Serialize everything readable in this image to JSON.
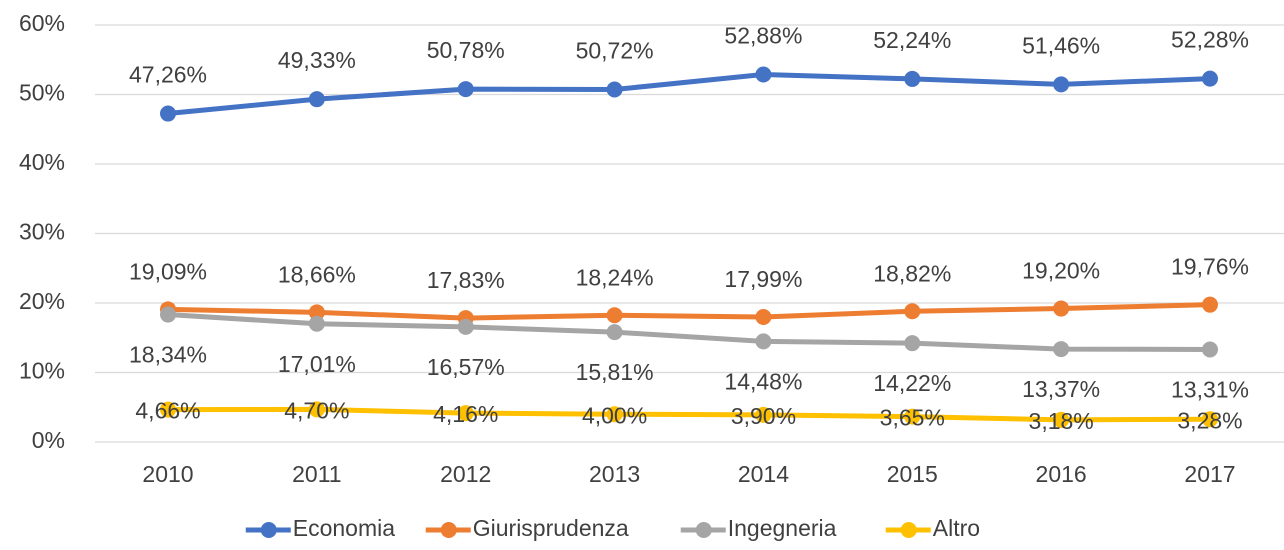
{
  "chart_data": {
    "type": "line",
    "categories": [
      "2010",
      "2011",
      "2012",
      "2013",
      "2014",
      "2015",
      "2016",
      "2017"
    ],
    "series": [
      {
        "name": "Economia",
        "color": "#4472c4",
        "values": [
          47.26,
          49.33,
          50.78,
          50.72,
          52.88,
          52.24,
          51.46,
          52.28
        ],
        "value_labels": [
          "47,26%",
          "49,33%",
          "50,78%",
          "50,72%",
          "52,88%",
          "52,24%",
          "51,46%",
          "52,28%"
        ]
      },
      {
        "name": "Giurisprudenza",
        "color": "#ed7d31",
        "values": [
          19.09,
          18.66,
          17.83,
          18.24,
          17.99,
          18.82,
          19.2,
          19.76
        ],
        "value_labels": [
          "19,09%",
          "18,66%",
          "17,83%",
          "18,24%",
          "17,99%",
          "18,82%",
          "19,20%",
          "19,76%"
        ]
      },
      {
        "name": "Ingegneria",
        "color": "#a5a5a5",
        "values": [
          18.34,
          17.01,
          16.57,
          15.81,
          14.48,
          14.22,
          13.37,
          13.31
        ],
        "value_labels": [
          "18,34%",
          "17,01%",
          "16,57%",
          "15,81%",
          "14,48%",
          "14,22%",
          "13,37%",
          "13,31%"
        ]
      },
      {
        "name": "Altro",
        "color": "#ffc000",
        "values": [
          4.66,
          4.7,
          4.16,
          4.0,
          3.9,
          3.65,
          3.18,
          3.28
        ],
        "value_labels": [
          "4,66%",
          "4,70%",
          "4,16%",
          "4,00%",
          "3,90%",
          "3,65%",
          "3,18%",
          "3,28%"
        ]
      }
    ],
    "ylim": [
      0,
      60
    ],
    "yticks": [
      {
        "value": 0,
        "label": "0%"
      },
      {
        "value": 10,
        "label": "10%"
      },
      {
        "value": 20,
        "label": "20%"
      },
      {
        "value": 30,
        "label": "30%"
      },
      {
        "value": 40,
        "label": "40%"
      },
      {
        "value": 50,
        "label": "50%"
      },
      {
        "value": 60,
        "label": "60%"
      }
    ],
    "grid": true,
    "legend": "bottom"
  }
}
